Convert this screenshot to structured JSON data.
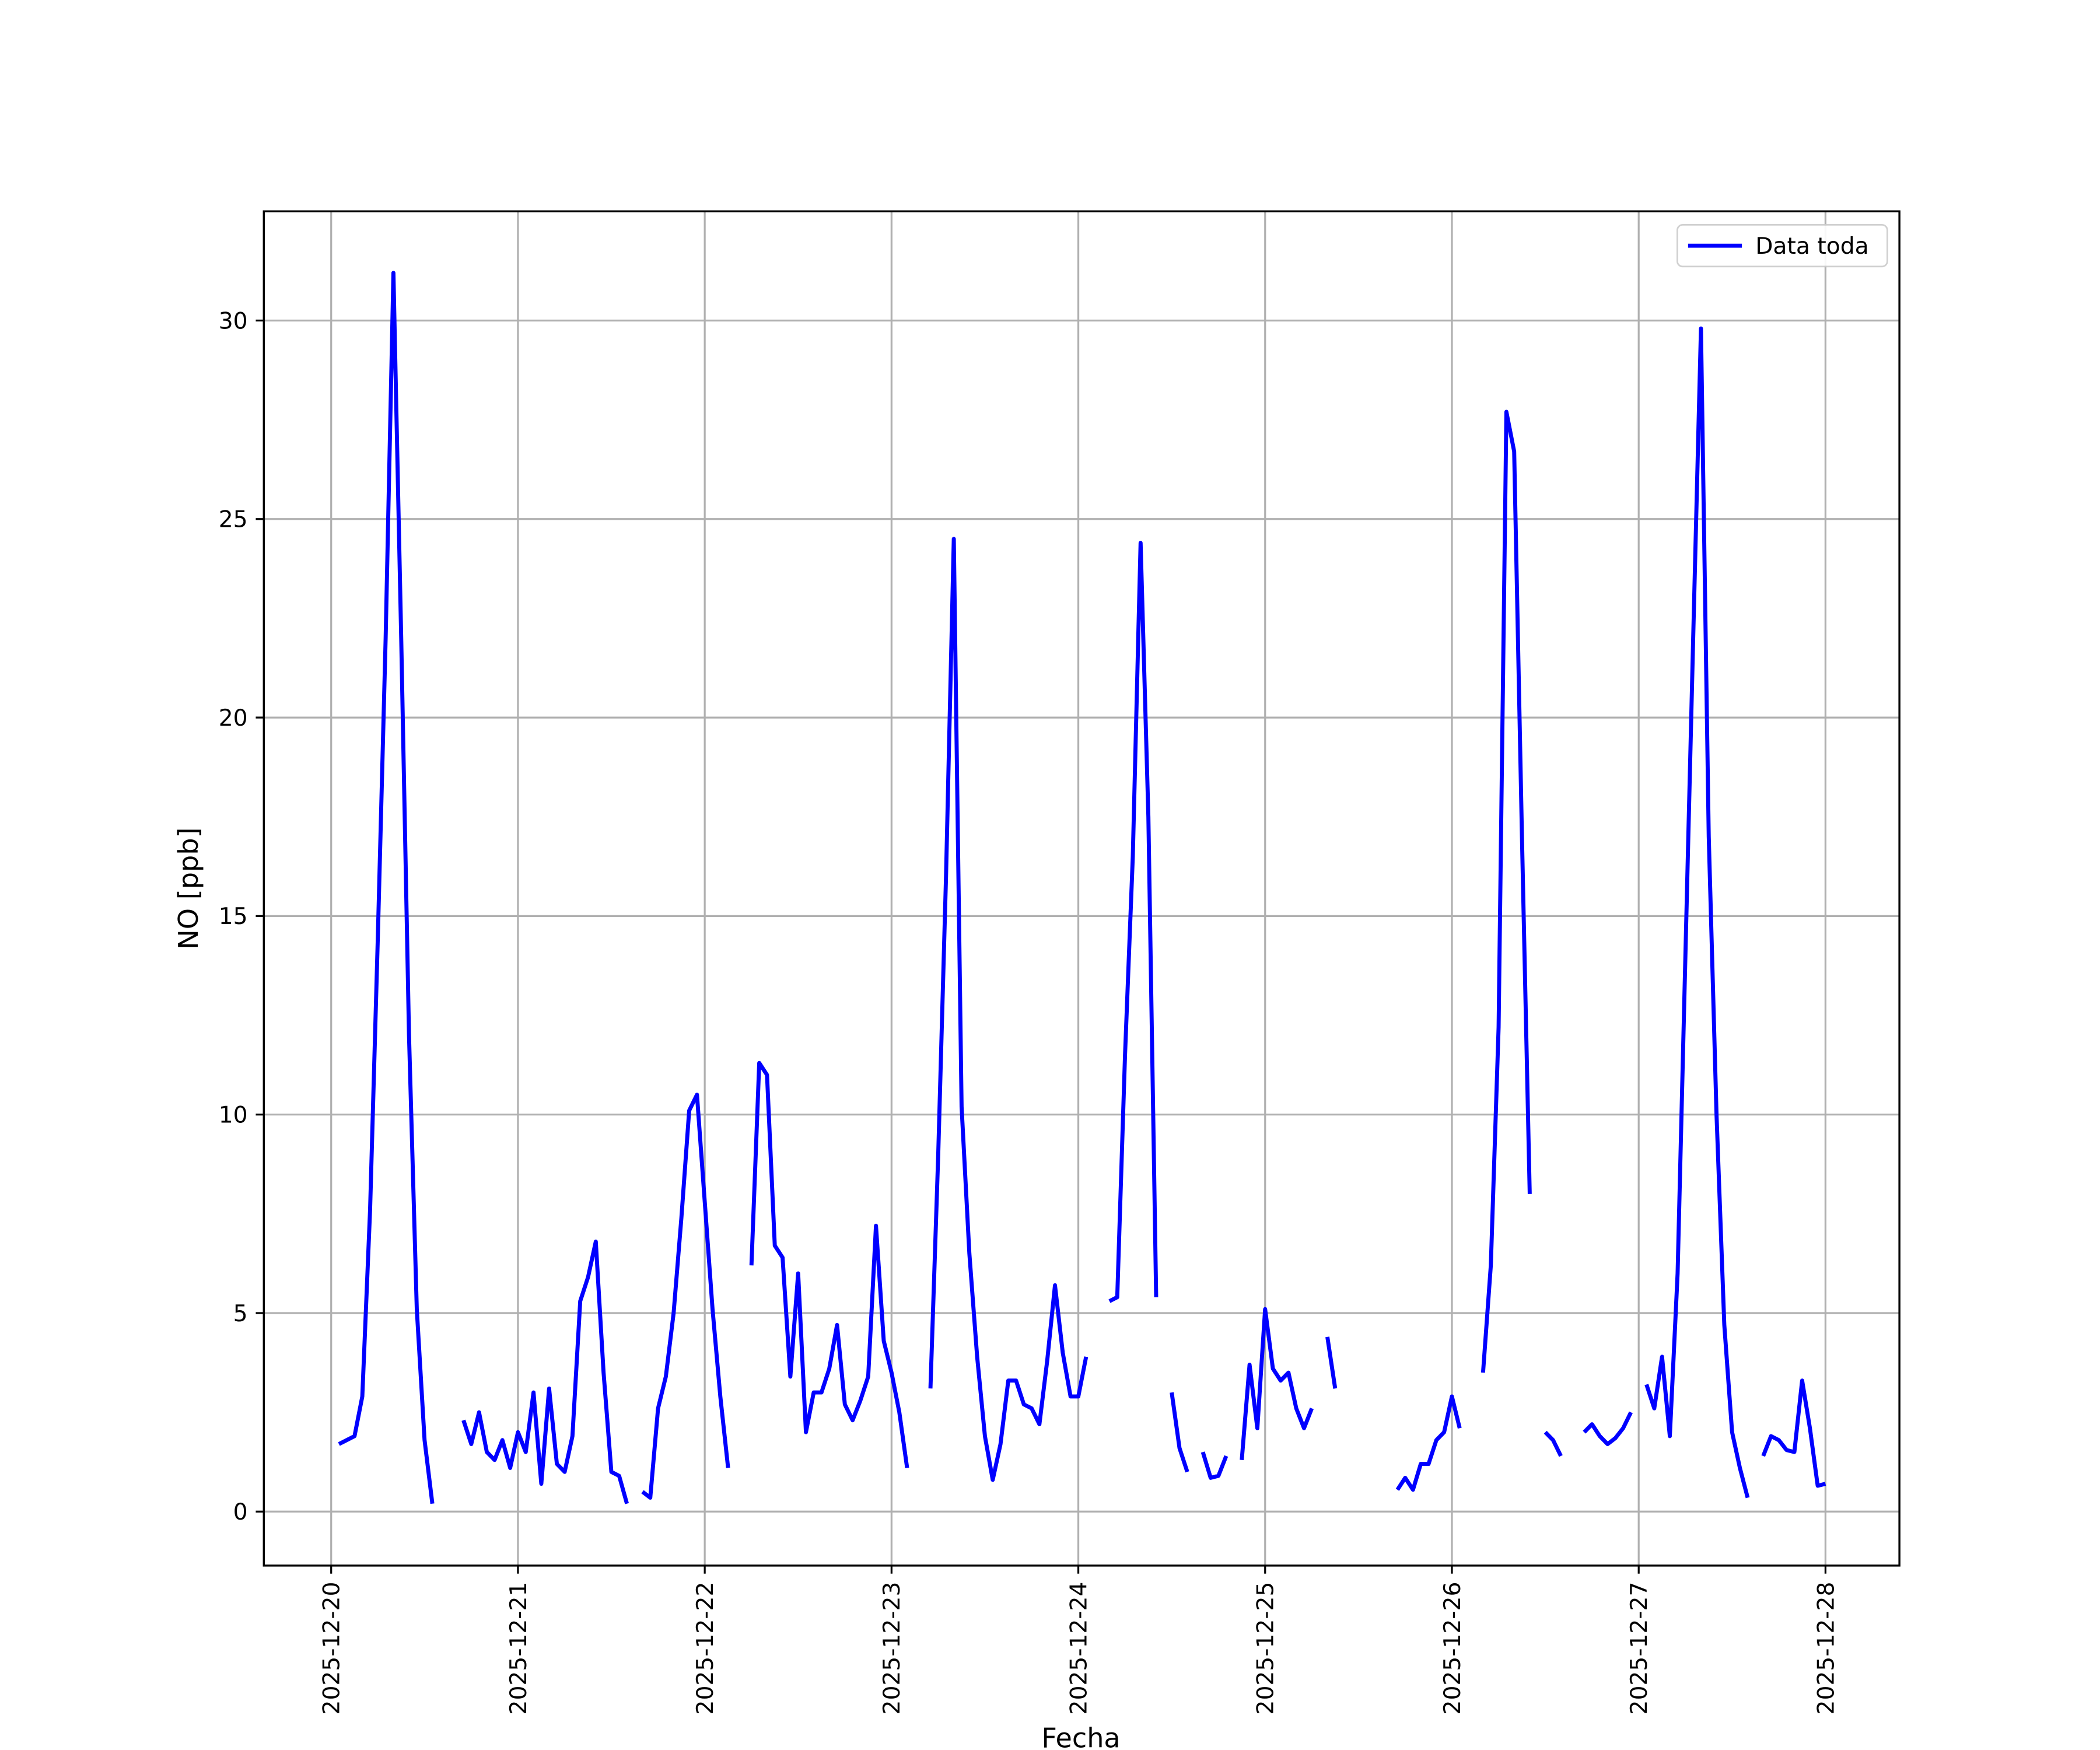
{
  "chart_data": {
    "type": "line",
    "xlabel": "Fecha",
    "ylabel": "NO [ppb]",
    "x": [
      "2025-12-20T01:00",
      "2025-12-20T02:00",
      "2025-12-20T03:00",
      "2025-12-20T04:00",
      "2025-12-20T05:00",
      "2025-12-20T06:00",
      "2025-12-20T07:00",
      "2025-12-20T08:00",
      "2025-12-20T09:00",
      "2025-12-20T10:00",
      "2025-12-20T11:00",
      "2025-12-20T12:00",
      "2025-12-20T13:00",
      "2025-12-20T14:00",
      "2025-12-20T17:00",
      "2025-12-20T18:00",
      "2025-12-20T19:00",
      "2025-12-20T20:00",
      "2025-12-20T21:00",
      "2025-12-20T22:00",
      "2025-12-20T23:00",
      "2025-12-21T00:00",
      "2025-12-21T01:00",
      "2025-12-21T02:00",
      "2025-12-21T03:00",
      "2025-12-21T04:00",
      "2025-12-21T05:00",
      "2025-12-21T06:00",
      "2025-12-21T07:00",
      "2025-12-21T08:00",
      "2025-12-21T09:00",
      "2025-12-21T10:00",
      "2025-12-21T11:00",
      "2025-12-21T12:00",
      "2025-12-21T13:00",
      "2025-12-21T14:00",
      "2025-12-21T15:00",
      "2025-12-21T16:00",
      "2025-12-21T17:00",
      "2025-12-21T18:00",
      "2025-12-21T19:00",
      "2025-12-21T20:00",
      "2025-12-21T21:00",
      "2025-12-21T22:00",
      "2025-12-21T23:00",
      "2025-12-22T00:00",
      "2025-12-22T01:00",
      "2025-12-22T02:00",
      "2025-12-22T03:00",
      "2025-12-22T04:00",
      "2025-12-22T06:00",
      "2025-12-22T07:00",
      "2025-12-22T08:00",
      "2025-12-22T09:00",
      "2025-12-22T10:00",
      "2025-12-22T11:00",
      "2025-12-22T12:00",
      "2025-12-22T13:00",
      "2025-12-22T14:00",
      "2025-12-22T15:00",
      "2025-12-22T16:00",
      "2025-12-22T17:00",
      "2025-12-22T18:00",
      "2025-12-22T19:00",
      "2025-12-22T20:00",
      "2025-12-22T21:00",
      "2025-12-22T22:00",
      "2025-12-22T23:00",
      "2025-12-23T00:00",
      "2025-12-23T01:00",
      "2025-12-23T02:00",
      "2025-12-23T03:00",
      "2025-12-23T05:00",
      "2025-12-23T06:00",
      "2025-12-23T07:00",
      "2025-12-23T08:00",
      "2025-12-23T09:00",
      "2025-12-23T10:00",
      "2025-12-23T11:00",
      "2025-12-23T12:00",
      "2025-12-23T13:00",
      "2025-12-23T14:00",
      "2025-12-23T15:00",
      "2025-12-23T16:00",
      "2025-12-23T17:00",
      "2025-12-23T18:00",
      "2025-12-23T19:00",
      "2025-12-23T20:00",
      "2025-12-23T21:00",
      "2025-12-23T22:00",
      "2025-12-23T23:00",
      "2025-12-24T00:00",
      "2025-12-24T01:00",
      "2025-12-24T02:00",
      "2025-12-24T04:00",
      "2025-12-24T05:00",
      "2025-12-24T06:00",
      "2025-12-24T07:00",
      "2025-12-24T08:00",
      "2025-12-24T09:00",
      "2025-12-24T10:00",
      "2025-12-24T11:00",
      "2025-12-24T12:00",
      "2025-12-24T13:00",
      "2025-12-24T14:00",
      "2025-12-24T15:00",
      "2025-12-24T16:00",
      "2025-12-24T17:00",
      "2025-12-24T18:00",
      "2025-12-24T19:00",
      "2025-12-24T20:00",
      "2025-12-24T21:00",
      "2025-12-24T22:00",
      "2025-12-24T23:00",
      "2025-12-25T00:00",
      "2025-12-25T01:00",
      "2025-12-25T02:00",
      "2025-12-25T03:00",
      "2025-12-25T04:00",
      "2025-12-25T05:00",
      "2025-12-25T06:00",
      "2025-12-25T07:00",
      "2025-12-25T08:00",
      "2025-12-25T09:00",
      "2025-12-25T10:00",
      "2025-12-25T17:00",
      "2025-12-25T18:00",
      "2025-12-25T19:00",
      "2025-12-25T20:00",
      "2025-12-25T21:00",
      "2025-12-25T22:00",
      "2025-12-25T23:00",
      "2025-12-26T00:00",
      "2025-12-26T01:00",
      "2025-12-26T02:00",
      "2025-12-26T04:00",
      "2025-12-26T05:00",
      "2025-12-26T06:00",
      "2025-12-26T07:00",
      "2025-12-26T08:00",
      "2025-12-26T09:00",
      "2025-12-26T10:00",
      "2025-12-26T11:00",
      "2025-12-26T12:00",
      "2025-12-26T13:00",
      "2025-12-26T14:00",
      "2025-12-26T15:00",
      "2025-12-26T17:00",
      "2025-12-26T18:00",
      "2025-12-26T19:00",
      "2025-12-26T20:00",
      "2025-12-26T21:00",
      "2025-12-26T22:00",
      "2025-12-26T23:00",
      "2025-12-27T00:00",
      "2025-12-27T01:00",
      "2025-12-27T02:00",
      "2025-12-27T03:00",
      "2025-12-27T04:00",
      "2025-12-27T05:00",
      "2025-12-27T06:00",
      "2025-12-27T07:00",
      "2025-12-27T08:00",
      "2025-12-27T09:00",
      "2025-12-27T10:00",
      "2025-12-27T11:00",
      "2025-12-27T12:00",
      "2025-12-27T13:00",
      "2025-12-27T14:00",
      "2025-12-27T15:00",
      "2025-12-27T16:00",
      "2025-12-27T17:00",
      "2025-12-27T18:00",
      "2025-12-27T19:00",
      "2025-12-27T20:00",
      "2025-12-27T21:00",
      "2025-12-27T22:00",
      "2025-12-27T23:00",
      "2025-12-28T00:00"
    ],
    "series": [
      {
        "name": "Data toda",
        "color": "#0000ff",
        "values": [
          1.7,
          1.8,
          1.9,
          2.9,
          7.6,
          14.5,
          22,
          31.2,
          22,
          12,
          5.1,
          1.8,
          0.2,
          null,
          2.3,
          1.7,
          2.5,
          1.5,
          1.3,
          1.8,
          1.1,
          2.0,
          1.5,
          3.0,
          0.7,
          3.1,
          1.2,
          1.0,
          1.9,
          5.3,
          5.9,
          6.8,
          3.5,
          1.0,
          0.9,
          0.2,
          null,
          0.5,
          0.35,
          2.6,
          3.4,
          5.0,
          7.4,
          10.1,
          10.5,
          7.8,
          5.1,
          2.9,
          1.1,
          null,
          6.2,
          11.3,
          11.0,
          6.7,
          6.4,
          3.4,
          6.0,
          2.0,
          3.0,
          3.0,
          3.6,
          4.7,
          2.7,
          2.3,
          2.8,
          3.4,
          7.2,
          4.3,
          3.5,
          2.5,
          1.1,
          null,
          3.1,
          9,
          16,
          24.5,
          10.2,
          6.5,
          3.9,
          1.9,
          0.8,
          1.7,
          3.3,
          3.3,
          2.7,
          2.6,
          2.2,
          3.8,
          5.7,
          4.0,
          2.9,
          2.9,
          3.9,
          null,
          5.3,
          5.4,
          11.5,
          16.5,
          24.4,
          17.5,
          5.4,
          null,
          3.0,
          1.6,
          1.0,
          null,
          1.5,
          0.85,
          0.9,
          1.4,
          null,
          1.3,
          3.7,
          2.1,
          5.1,
          3.6,
          3.3,
          3.5,
          2.6,
          2.1,
          2.6,
          null,
          4.4,
          3.1,
          null,
          0.55,
          0.85,
          0.55,
          1.2,
          1.2,
          1.8,
          2.0,
          2.9,
          2.1,
          null,
          3.5,
          6.2,
          12.2,
          27.7,
          26.7,
          17,
          8,
          null,
          2.0,
          1.8,
          1.4,
          null,
          2.0,
          2.2,
          1.9,
          1.7,
          1.85,
          2.1,
          2.5,
          null,
          3.2,
          2.6,
          3.9,
          1.9,
          6,
          14,
          22,
          29.8,
          17,
          10,
          4.7,
          2.0,
          1.1,
          0.35,
          null,
          1.4,
          1.9,
          1.8,
          1.55,
          1.5,
          3.3,
          2.1,
          0.65,
          0.7
        ]
      }
    ],
    "xlim": [
      "2025-12-19T15:21",
      "2025-12-28T09:30"
    ],
    "xticks": [
      "2025-12-20",
      "2025-12-21",
      "2025-12-22",
      "2025-12-23",
      "2025-12-24",
      "2025-12-25",
      "2025-12-26",
      "2025-12-27",
      "2025-12-28"
    ],
    "ylim": [
      -1.36,
      32.75
    ],
    "yticks": [
      0,
      5,
      10,
      15,
      20,
      25,
      30
    ],
    "grid": true,
    "legend": "upper right"
  }
}
